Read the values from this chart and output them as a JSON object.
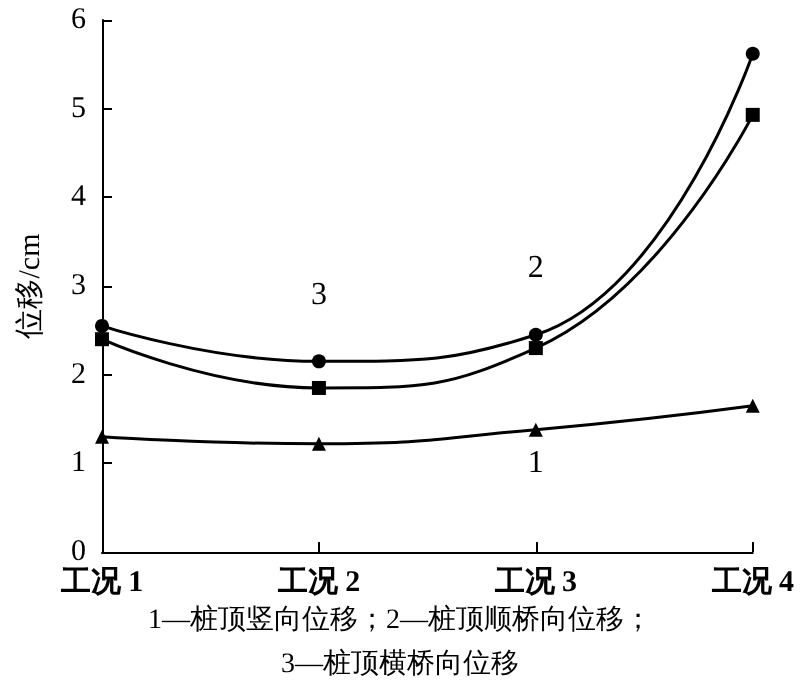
{
  "chart_data": {
    "type": "line",
    "ylabel": "位移/cm",
    "categories": [
      "工况 1",
      "工况 2",
      "工况 3",
      "工况 4"
    ],
    "ylim": [
      0,
      6
    ],
    "yticks": [
      0,
      1,
      2,
      3,
      4,
      5,
      6
    ],
    "grid": false,
    "legend": false,
    "line_style": "solid",
    "series": [
      {
        "name": "1",
        "color": "#000000",
        "marker": "triangle",
        "values": [
          1.3,
          1.22,
          1.38,
          1.65
        ]
      },
      {
        "name": "2",
        "color": "#000000",
        "marker": "square",
        "values": [
          2.4,
          1.85,
          2.3,
          4.93
        ]
      },
      {
        "name": "3",
        "color": "#000000",
        "marker": "circle",
        "values": [
          2.55,
          2.15,
          2.45,
          5.62
        ]
      }
    ],
    "annotations": [
      "1—桩顶竖向位移；2—桩顶顺桥向位移；",
      "3—桩顶横桥向位移"
    ]
  }
}
